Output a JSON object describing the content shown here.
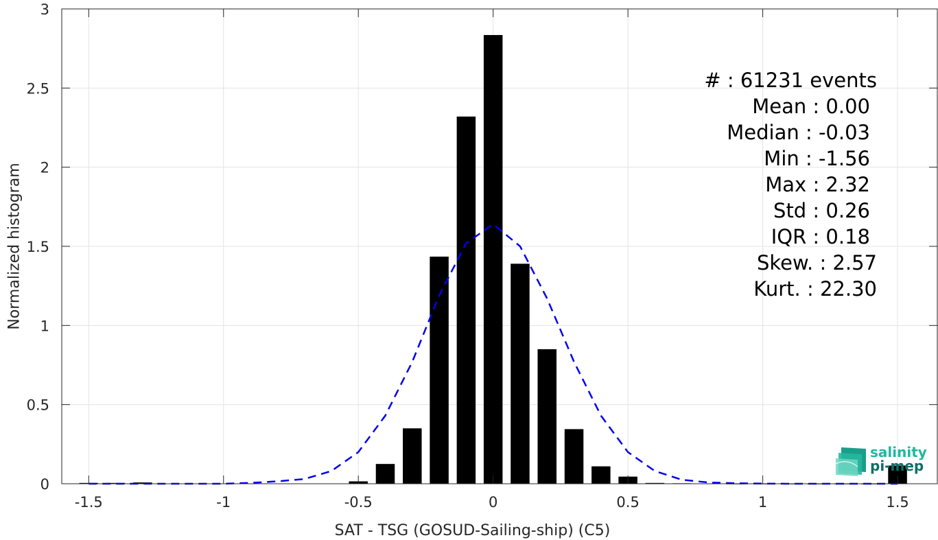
{
  "chart_data": {
    "type": "bar",
    "xlabel": "SAT - TSG (GOSUD-Sailing-ship) (C5)",
    "ylabel": "Normalized histogram",
    "xlim": [
      -1.6,
      1.65
    ],
    "ylim": [
      0,
      3
    ],
    "xticks": [
      -1.5,
      -1,
      -0.5,
      0,
      0.5,
      1,
      1.5
    ],
    "xtick_labels": [
      "-1.5",
      "-1",
      "-0.5",
      "0",
      "0.5",
      "1",
      "1.5"
    ],
    "yticks": [
      0,
      0.5,
      1,
      1.5,
      2,
      2.5,
      3
    ],
    "ytick_labels": [
      "0",
      "0.5",
      "1",
      "1.5",
      "2",
      "2.5",
      "3"
    ],
    "grid": true,
    "bar_width": 0.07,
    "bars": {
      "x": [
        -1.5,
        -1.4,
        -1.3,
        -1.2,
        -1.1,
        -1.0,
        -0.9,
        -0.8,
        -0.7,
        -0.6,
        -0.5,
        -0.4,
        -0.3,
        -0.2,
        -0.1,
        0.0,
        0.1,
        0.2,
        0.3,
        0.4,
        0.5,
        0.6,
        0.7,
        0.8,
        0.9,
        1.0,
        1.1,
        1.2,
        1.3,
        1.4,
        1.5
      ],
      "values": [
        0.005,
        0.005,
        0.008,
        0.0,
        0.0,
        0.0,
        0.0,
        0.0,
        0.0,
        0.0,
        0.015,
        0.125,
        0.35,
        1.435,
        2.32,
        2.835,
        1.39,
        0.85,
        0.345,
        0.11,
        0.045,
        0.005,
        0.003,
        0.002,
        0.001,
        0.001,
        0.001,
        0.001,
        0.001,
        0.001,
        0.115
      ],
      "color": "#000000"
    },
    "fit_curve": {
      "style": "dashed",
      "color": "#0000ee",
      "x": [
        -1.5,
        -1.4,
        -1.3,
        -1.2,
        -1.1,
        -1.0,
        -0.9,
        -0.8,
        -0.7,
        -0.6,
        -0.5,
        -0.4,
        -0.3,
        -0.2,
        -0.1,
        0.0,
        0.1,
        0.2,
        0.3,
        0.4,
        0.5,
        0.6,
        0.7,
        0.8,
        0.9,
        1.0,
        1.1,
        1.2,
        1.3,
        1.4,
        1.5
      ],
      "values": [
        0.0,
        0.0,
        0.0,
        0.0,
        0.0,
        0.0,
        0.005,
        0.015,
        0.03,
        0.08,
        0.2,
        0.43,
        0.77,
        1.19,
        1.52,
        1.64,
        1.5,
        1.17,
        0.77,
        0.43,
        0.2,
        0.08,
        0.025,
        0.008,
        0.003,
        0.001,
        0.0,
        0.0,
        0.0,
        0.0,
        0.0
      ]
    }
  },
  "stats": [
    "#  : 61231 events",
    "Mean : 0.00",
    "Median : -0.03",
    "Min : -1.56",
    "Max : 2.32",
    "Std : 0.26",
    "IQR : 0.18",
    "Skew. : 2.57",
    "Kurt. : 22.30"
  ],
  "logo": {
    "line1": "salinity",
    "line2": "pi-mep",
    "color1": "#1fb8a0",
    "color2": "#0f6e66"
  }
}
